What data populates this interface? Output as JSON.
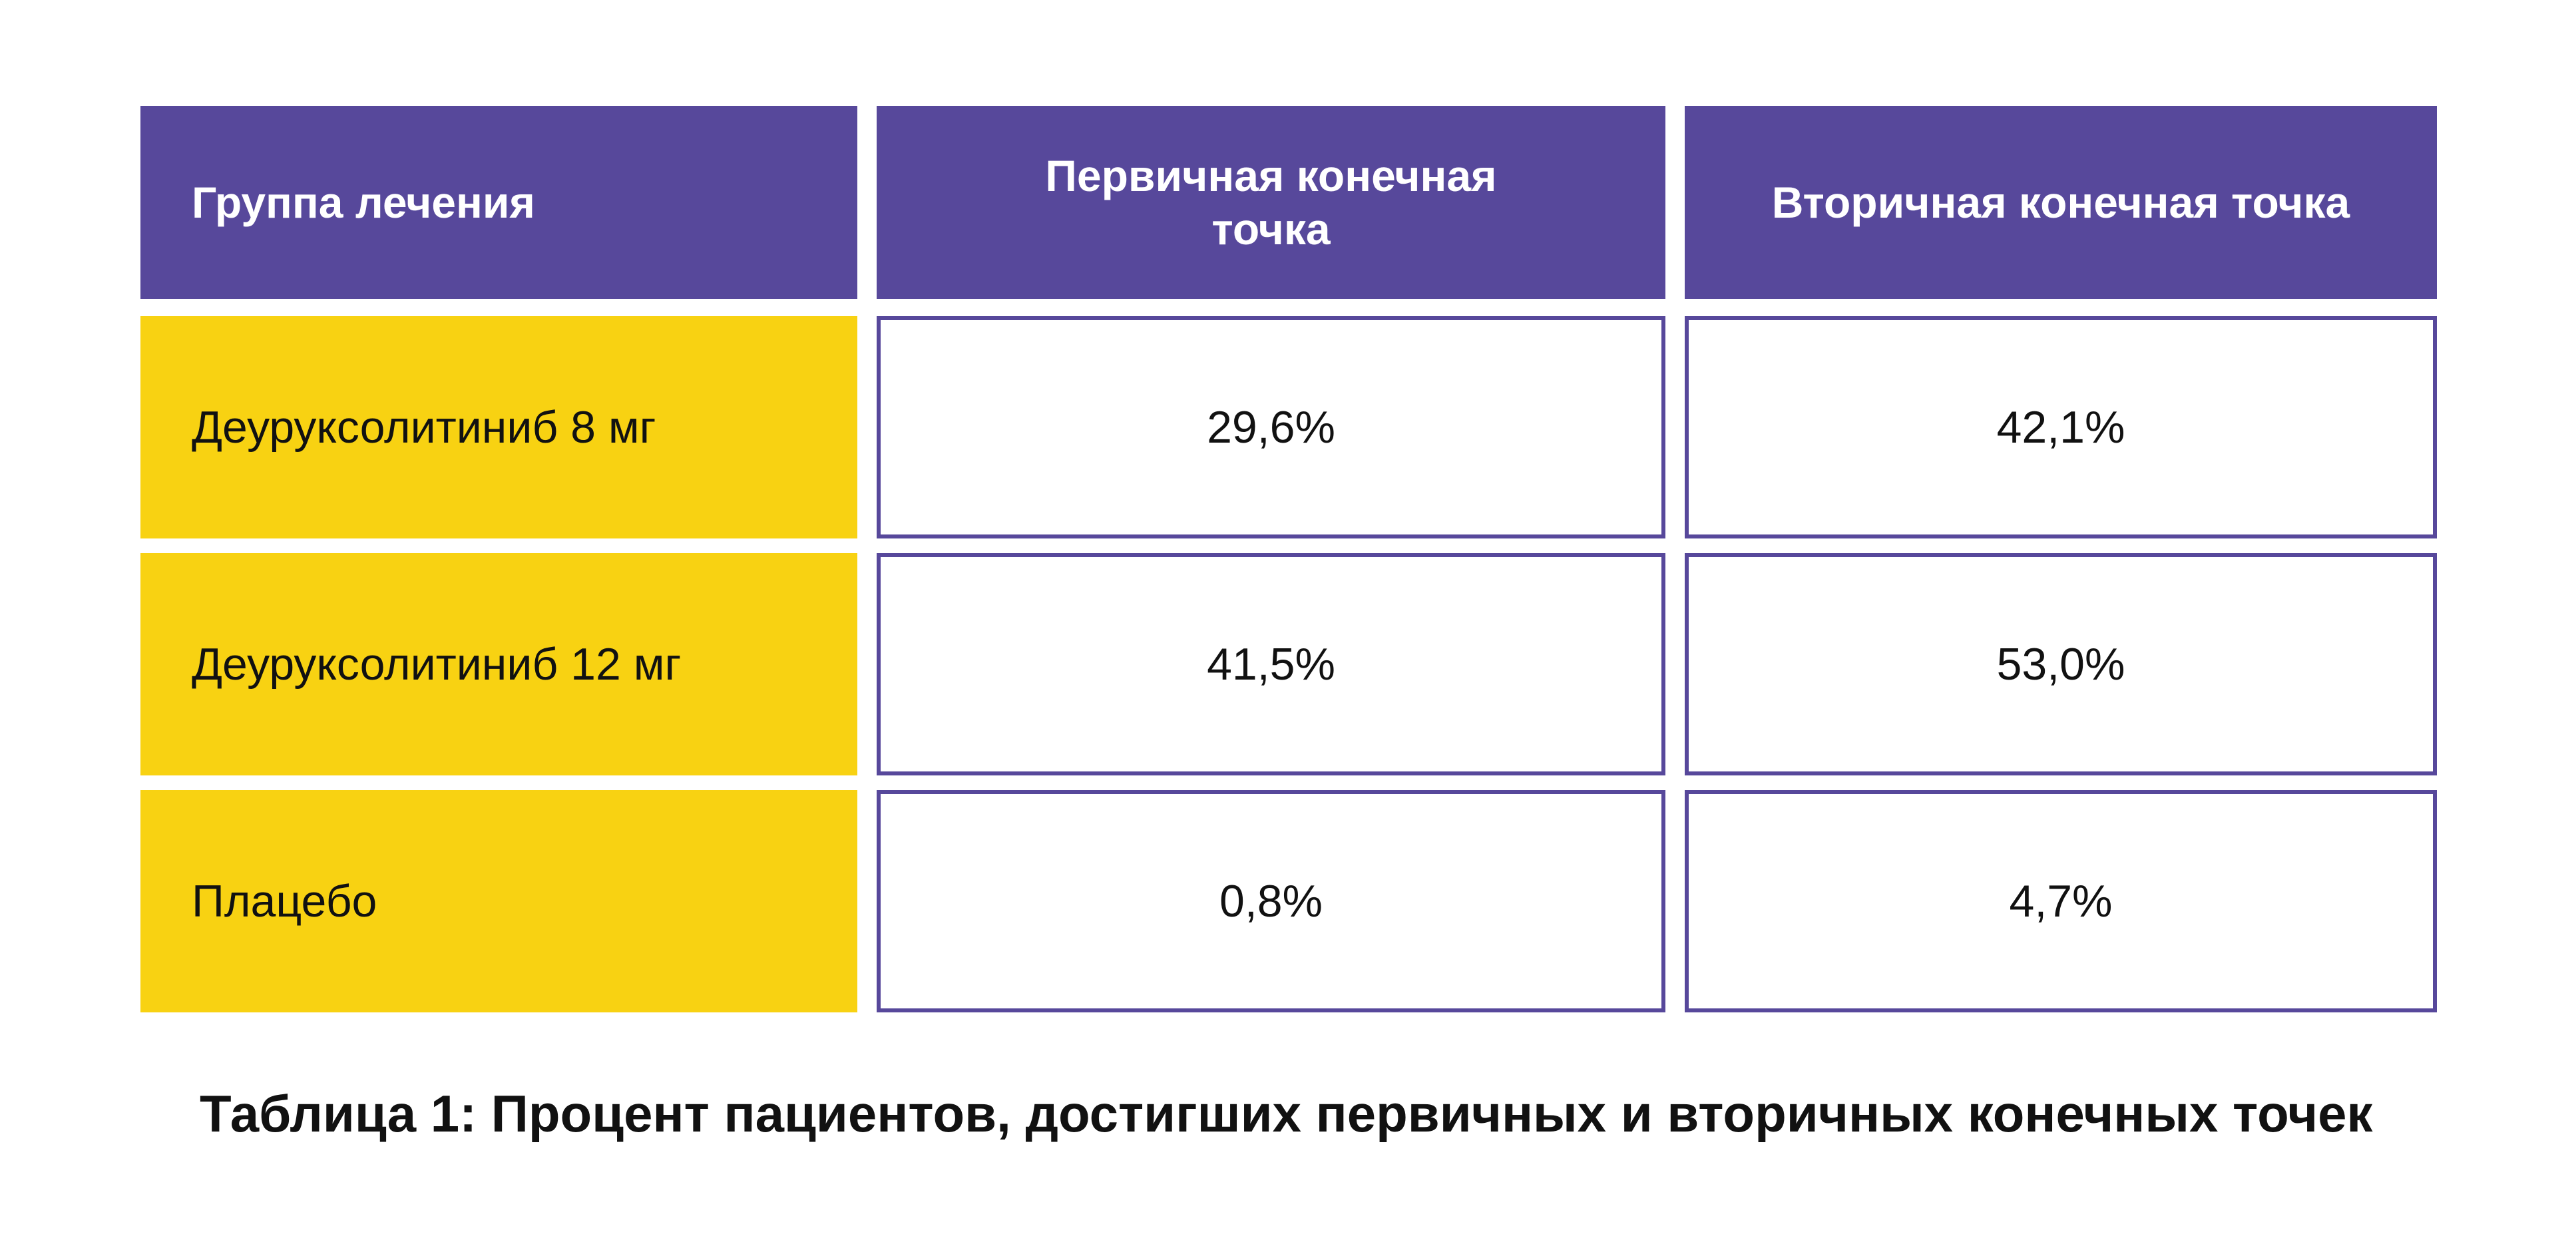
{
  "table": {
    "headers": [
      "Группа лечения",
      "Первичная конечная точка",
      "Вторичная конечная точка"
    ],
    "rows": [
      [
        "Деуруксолитиниб 8 мг",
        "29,6%",
        "42,1%"
      ],
      [
        "Деуруксолитиниб 12 мг",
        "41,5%",
        "53,0%"
      ],
      [
        "Плацебо",
        "0,8%",
        "4,7%"
      ]
    ]
  },
  "caption": "Таблица 1: Процент пациентов, достигших первичных и вторичных конечных точек",
  "colors": {
    "header_bg": "#57489b",
    "group_bg": "#f8d212",
    "border": "#57489b",
    "text": "#111111"
  }
}
